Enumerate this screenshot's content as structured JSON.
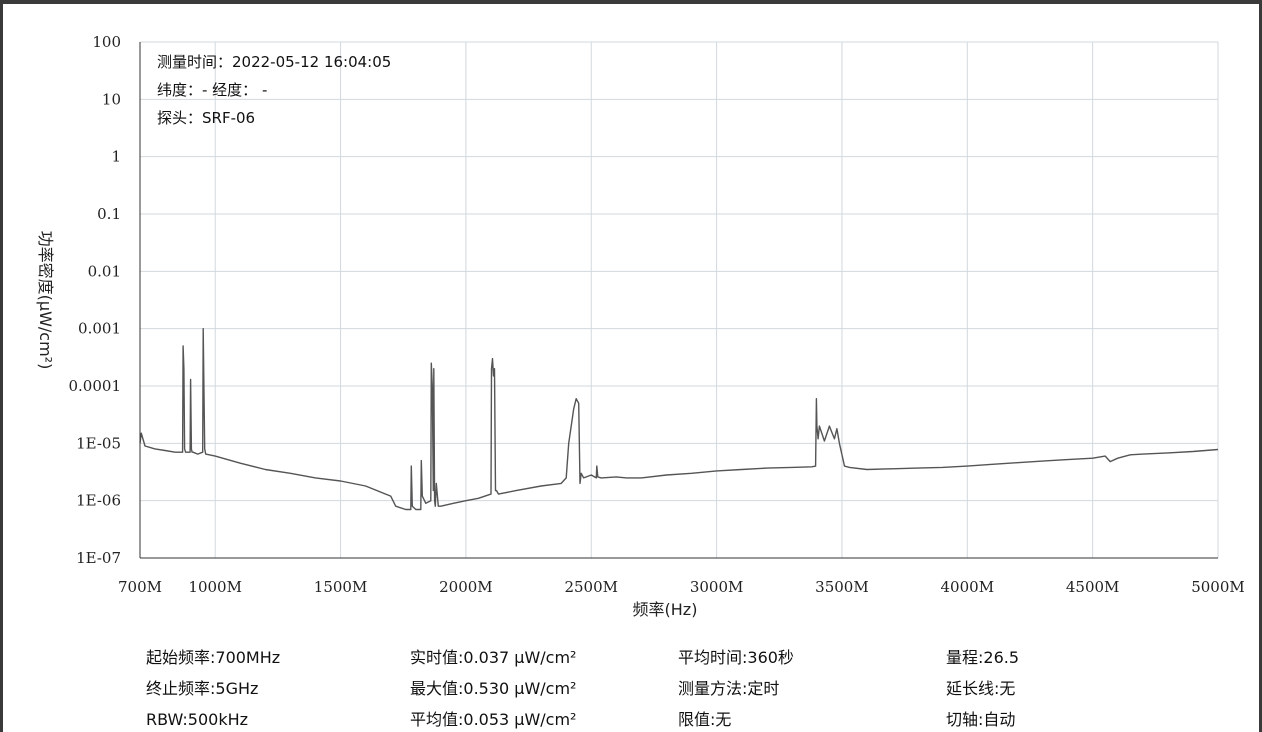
{
  "chart_data": {
    "type": "line",
    "title": "",
    "xlabel": "频率(Hz)",
    "ylabel": "功率密度(μW/cm²)",
    "y_scale": "log",
    "xlim": [
      700,
      5000
    ],
    "ylim": [
      1e-07,
      100
    ],
    "x_ticks": [
      {
        "value": 700,
        "label": "700M"
      },
      {
        "value": 1000,
        "label": "1000M"
      },
      {
        "value": 1500,
        "label": "1500M"
      },
      {
        "value": 2000,
        "label": "2000M"
      },
      {
        "value": 2500,
        "label": "2500M"
      },
      {
        "value": 3000,
        "label": "3000M"
      },
      {
        "value": 3500,
        "label": "3500M"
      },
      {
        "value": 4000,
        "label": "4000M"
      },
      {
        "value": 4500,
        "label": "4500M"
      },
      {
        "value": 5000,
        "label": "5000M"
      }
    ],
    "y_ticks": [
      {
        "value": 100,
        "label": "100"
      },
      {
        "value": 10,
        "label": "10"
      },
      {
        "value": 1,
        "label": "1"
      },
      {
        "value": 0.1,
        "label": "0.1"
      },
      {
        "value": 0.01,
        "label": "0.01"
      },
      {
        "value": 0.001,
        "label": "0.001"
      },
      {
        "value": 0.0001,
        "label": "0.0001"
      },
      {
        "value": 1e-05,
        "label": "1E-05"
      },
      {
        "value": 1e-06,
        "label": "1E-06"
      },
      {
        "value": 1e-07,
        "label": "1E-07"
      }
    ],
    "grid": true,
    "series": [
      {
        "name": "",
        "x": [
          700,
          705,
          720,
          760,
          800,
          840,
          870,
          872,
          875,
          878,
          882,
          900,
          902,
          905,
          908,
          912,
          930,
          950,
          952,
          955,
          958,
          962,
          1000,
          1100,
          1200,
          1300,
          1400,
          1500,
          1600,
          1700,
          1720,
          1760,
          1780,
          1782,
          1786,
          1800,
          1820,
          1822,
          1826,
          1840,
          1860,
          1862,
          1866,
          1870,
          1872,
          1875,
          1878,
          1882,
          1890,
          1900,
          1950,
          2000,
          2050,
          2100,
          2102,
          2106,
          2110,
          2114,
          2118,
          2122,
          2130,
          2200,
          2300,
          2380,
          2400,
          2410,
          2420,
          2430,
          2440,
          2450,
          2455,
          2460,
          2470,
          2500,
          2520,
          2522,
          2526,
          2540,
          2600,
          2640,
          2700,
          2800,
          2900,
          3000,
          3100,
          3200,
          3300,
          3380,
          3395,
          3398,
          3400,
          3405,
          3410,
          3430,
          3450,
          3470,
          3480,
          3490,
          3510,
          3530,
          3600,
          3700,
          3800,
          3900,
          4000,
          4100,
          4200,
          4300,
          4400,
          4500,
          4550,
          4570,
          4600,
          4650,
          4700,
          4800,
          4900,
          5000
        ],
        "y": [
          1e-05,
          1.5e-05,
          9e-06,
          8e-06,
          7.5e-06,
          7e-06,
          7e-06,
          0.0005,
          0.0002,
          8e-06,
          7e-06,
          7e-06,
          0.00013,
          8e-06,
          7e-06,
          7e-06,
          6.5e-06,
          7e-06,
          0.001,
          0.0001,
          8e-06,
          6.5e-06,
          6e-06,
          4.5e-06,
          3.5e-06,
          3e-06,
          2.5e-06,
          2.2e-06,
          1.8e-06,
          1.2e-06,
          8e-07,
          7e-07,
          7e-07,
          4e-06,
          8e-07,
          7e-07,
          7e-07,
          5e-06,
          1.2e-06,
          9e-07,
          1e-06,
          0.00025,
          0.0001,
          1.5e-06,
          0.0002,
          1e-06,
          8e-07,
          2e-06,
          8e-07,
          8e-07,
          9e-07,
          1e-06,
          1.1e-06,
          1.3e-06,
          0.0002,
          0.0003,
          0.00015,
          0.0002,
          1.5e-06,
          1.5e-06,
          1.3e-06,
          1.5e-06,
          1.8e-06,
          2e-06,
          2.5e-06,
          1e-05,
          2e-05,
          4e-05,
          6e-05,
          5e-05,
          2e-06,
          3e-06,
          2.5e-06,
          2.8e-06,
          2.5e-06,
          4e-06,
          2.6e-06,
          2.5e-06,
          2.6e-06,
          2.5e-06,
          2.5e-06,
          2.8e-06,
          3e-06,
          3.3e-06,
          3.5e-06,
          3.7e-06,
          3.8e-06,
          3.9e-06,
          4e-06,
          6e-05,
          2e-05,
          1.2e-05,
          2e-05,
          1.1e-05,
          2e-05,
          1.2e-05,
          1.8e-05,
          1e-05,
          4e-06,
          3.8e-06,
          3.5e-06,
          3.6e-06,
          3.7e-06,
          3.8e-06,
          4e-06,
          4.3e-06,
          4.6e-06,
          4.9e-06,
          5.2e-06,
          5.5e-06,
          6e-06,
          4.8e-06,
          5.5e-06,
          6.3e-06,
          6.5e-06,
          6.8e-06,
          7.2e-06,
          7.8e-06
        ]
      }
    ],
    "annotations": [
      "测量时间：2022-05-12 16:04:05",
      "纬度：- 经度： -",
      "探头：SRF-06"
    ]
  },
  "params": [
    [
      "起始频率:700MHz",
      "实时值:0.037 μW/cm²",
      "平均时间:360秒",
      "量程:26.5"
    ],
    [
      "终止频率:5GHz",
      "最大值:0.530 μW/cm²",
      "测量方法:定时",
      "延长线:无"
    ],
    [
      "RBW:500kHz",
      "平均值:0.053 μW/cm²",
      "限值:无",
      "切轴:自动"
    ]
  ],
  "colors": {
    "line": "#555555",
    "grid": "#d2d8de",
    "axis": "#333333"
  }
}
